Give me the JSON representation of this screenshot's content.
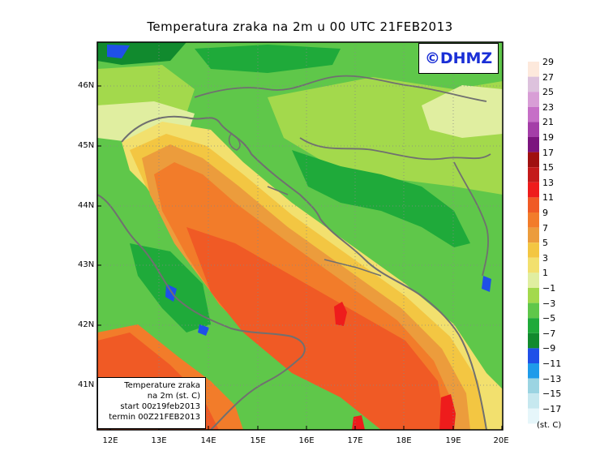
{
  "title": "Temperatura zraka na 2m u 00 UTC 21FEB2013",
  "logo": "©DHMZ",
  "info_box": {
    "line1": "Temperature zraka",
    "line2": "na 2m (st. C)",
    "line3": "start 00z19feb2013",
    "line4": "termin 00Z21FEB2013"
  },
  "lat_labels": [
    "46N",
    "45N",
    "44N",
    "43N",
    "42N",
    "41N"
  ],
  "lon_labels": [
    "12E",
    "13E",
    "14E",
    "15E",
    "16E",
    "17E",
    "18E",
    "19E",
    "20E"
  ],
  "colorbar": {
    "labels": [
      "29",
      "27",
      "25",
      "23",
      "21",
      "19",
      "17",
      "15",
      "13",
      "11",
      "9",
      "7",
      "5",
      "3",
      "1",
      "−1",
      "−3",
      "−5",
      "−7",
      "−9",
      "−11",
      "−13",
      "−15",
      "−17"
    ],
    "unit": "(st. C)",
    "colors_top_to_bottom": [
      "#fde9dc",
      "#ddc2dd",
      "#d89ed6",
      "#c66fc7",
      "#a43ea8",
      "#7b147e",
      "#a01010",
      "#c41a1a",
      "#ee1c1c",
      "#f05a25",
      "#f27c2a",
      "#ec9c3c",
      "#f3c642",
      "#f2e06e",
      "#e0eea0",
      "#a3d94c",
      "#5fc74a",
      "#1faa3a",
      "#118a2e",
      "#1f50e8",
      "#1e9bea",
      "#9bd4e2",
      "#c6e8ef",
      "#e6f6fa"
    ]
  }
}
